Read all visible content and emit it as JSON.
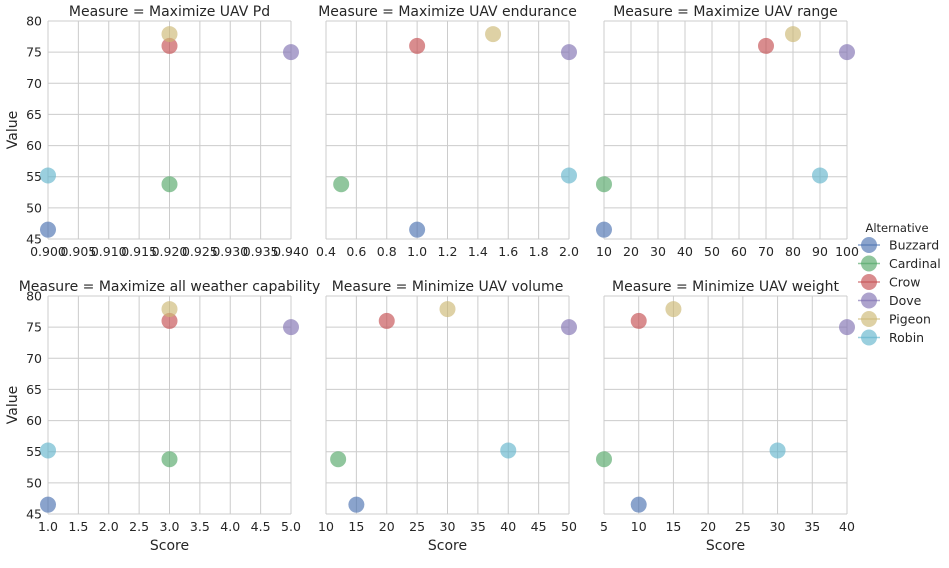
{
  "chart_data": {
    "type": "scatter",
    "xlabel": "Score",
    "ylabel": "Value",
    "ylim": [
      45,
      80
    ],
    "yticks": [
      "45",
      "50",
      "55",
      "60",
      "65",
      "70",
      "75",
      "80"
    ],
    "grid": true,
    "legend": {
      "title": "Alternative",
      "placement": "right",
      "entries": [
        {
          "name": "Buzzard",
          "color": "#4C72B0"
        },
        {
          "name": "Cardinal",
          "color": "#55A868"
        },
        {
          "name": "Crow",
          "color": "#C44E52"
        },
        {
          "name": "Dove",
          "color": "#8172B2"
        },
        {
          "name": "Pigeon",
          "color": "#CCB974"
        },
        {
          "name": "Robin",
          "color": "#64B5CD"
        }
      ]
    },
    "panels": [
      {
        "title": "Measure = Maximize UAV Pd",
        "xlim": [
          0.9,
          0.94
        ],
        "xticks": [
          "0.900",
          "0.905",
          "0.910",
          "0.915",
          "0.920",
          "0.925",
          "0.930",
          "0.935",
          "0.940"
        ],
        "points": [
          {
            "series": "Buzzard",
            "x": 0.9,
            "y": 46.5
          },
          {
            "series": "Cardinal",
            "x": 0.92,
            "y": 53.8
          },
          {
            "series": "Crow",
            "x": 0.92,
            "y": 76.0
          },
          {
            "series": "Dove",
            "x": 0.94,
            "y": 75.0
          },
          {
            "series": "Pigeon",
            "x": 0.92,
            "y": 77.9
          },
          {
            "series": "Robin",
            "x": 0.9,
            "y": 55.2
          }
        ]
      },
      {
        "title": "Measure = Maximize UAV endurance",
        "xlim": [
          0.4,
          2.0
        ],
        "xticks": [
          "0.4",
          "0.6",
          "0.8",
          "1.0",
          "1.2",
          "1.4",
          "1.6",
          "1.8",
          "2.0"
        ],
        "points": [
          {
            "series": "Buzzard",
            "x": 1.0,
            "y": 46.5
          },
          {
            "series": "Cardinal",
            "x": 0.5,
            "y": 53.8
          },
          {
            "series": "Crow",
            "x": 1.0,
            "y": 76.0
          },
          {
            "series": "Dove",
            "x": 2.0,
            "y": 75.0
          },
          {
            "series": "Pigeon",
            "x": 1.5,
            "y": 77.9
          },
          {
            "series": "Robin",
            "x": 2.0,
            "y": 55.2
          }
        ]
      },
      {
        "title": "Measure = Maximize UAV range",
        "xlim": [
          10,
          100
        ],
        "xticks": [
          "10",
          "20",
          "30",
          "40",
          "50",
          "60",
          "70",
          "80",
          "90",
          "100"
        ],
        "points": [
          {
            "series": "Buzzard",
            "x": 10,
            "y": 46.5
          },
          {
            "series": "Cardinal",
            "x": 10,
            "y": 53.8
          },
          {
            "series": "Crow",
            "x": 70,
            "y": 76.0
          },
          {
            "series": "Dove",
            "x": 100,
            "y": 75.0
          },
          {
            "series": "Pigeon",
            "x": 80,
            "y": 77.9
          },
          {
            "series": "Robin",
            "x": 90,
            "y": 55.2
          }
        ]
      },
      {
        "title": "Measure = Maximize all weather capability",
        "xlim": [
          1.0,
          5.0
        ],
        "xticks": [
          "1.0",
          "1.5",
          "2.0",
          "2.5",
          "3.0",
          "3.5",
          "4.0",
          "4.5",
          "5.0"
        ],
        "points": [
          {
            "series": "Buzzard",
            "x": 1.0,
            "y": 46.5
          },
          {
            "series": "Cardinal",
            "x": 3.0,
            "y": 53.8
          },
          {
            "series": "Crow",
            "x": 3.0,
            "y": 76.0
          },
          {
            "series": "Dove",
            "x": 5.0,
            "y": 75.0
          },
          {
            "series": "Pigeon",
            "x": 3.0,
            "y": 77.9
          },
          {
            "series": "Robin",
            "x": 1.0,
            "y": 55.2
          }
        ]
      },
      {
        "title": "Measure = Minimize UAV volume",
        "xlim": [
          10,
          50
        ],
        "xticks": [
          "10",
          "15",
          "20",
          "25",
          "30",
          "35",
          "40",
          "45",
          "50"
        ],
        "points": [
          {
            "series": "Buzzard",
            "x": 15,
            "y": 46.5
          },
          {
            "series": "Cardinal",
            "x": 12,
            "y": 53.8
          },
          {
            "series": "Crow",
            "x": 20,
            "y": 76.0
          },
          {
            "series": "Dove",
            "x": 50,
            "y": 75.0
          },
          {
            "series": "Pigeon",
            "x": 30,
            "y": 77.9
          },
          {
            "series": "Robin",
            "x": 40,
            "y": 55.2
          }
        ]
      },
      {
        "title": "Measure = Minimize UAV weight",
        "xlim": [
          5,
          40
        ],
        "xticks": [
          "5",
          "10",
          "15",
          "20",
          "25",
          "30",
          "35",
          "40"
        ],
        "points": [
          {
            "series": "Buzzard",
            "x": 10,
            "y": 46.5
          },
          {
            "series": "Cardinal",
            "x": 5,
            "y": 53.8
          },
          {
            "series": "Crow",
            "x": 10,
            "y": 76.0
          },
          {
            "series": "Dove",
            "x": 40,
            "y": 75.0
          },
          {
            "series": "Pigeon",
            "x": 15,
            "y": 77.9
          },
          {
            "series": "Robin",
            "x": 30,
            "y": 55.2
          }
        ]
      }
    ]
  }
}
